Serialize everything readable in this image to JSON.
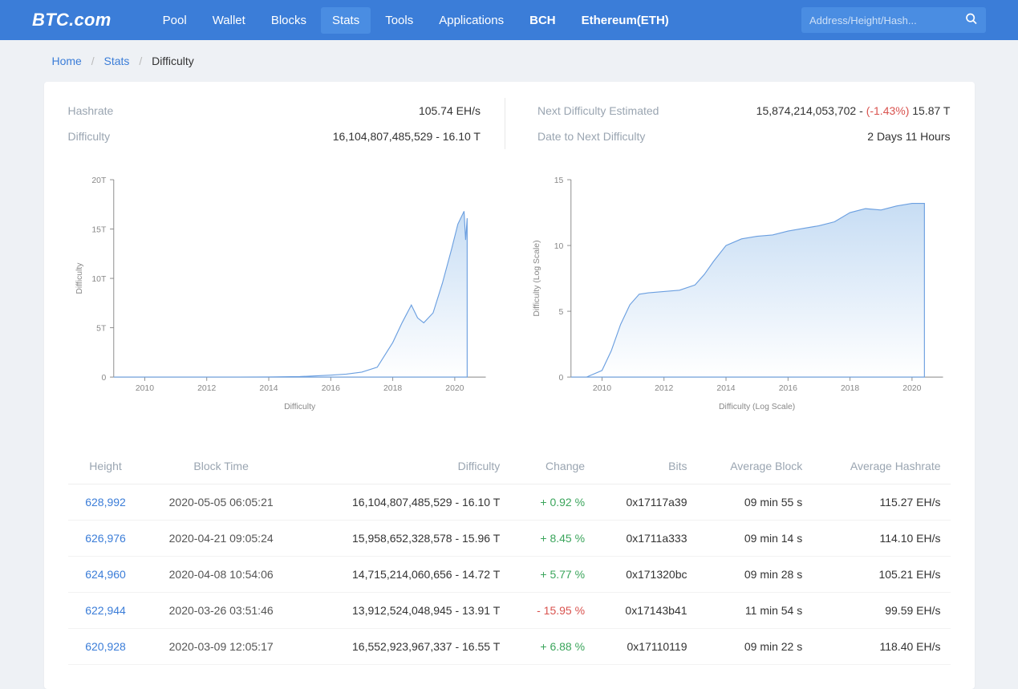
{
  "brand": "BTC.com",
  "nav": {
    "items": [
      {
        "label": "Pool",
        "active": false,
        "bold": false
      },
      {
        "label": "Wallet",
        "active": false,
        "bold": false
      },
      {
        "label": "Blocks",
        "active": false,
        "bold": false
      },
      {
        "label": "Stats",
        "active": true,
        "bold": false
      },
      {
        "label": "Tools",
        "active": false,
        "bold": false
      },
      {
        "label": "Applications",
        "active": false,
        "bold": false
      },
      {
        "label": "BCH",
        "active": false,
        "bold": true
      },
      {
        "label": "Ethereum(ETH)",
        "active": false,
        "bold": true
      }
    ],
    "search_placeholder": "Address/Height/Hash..."
  },
  "breadcrumb": {
    "home": "Home",
    "stats": "Stats",
    "current": "Difficulty"
  },
  "stats": {
    "hashrate_label": "Hashrate",
    "hashrate_value": "105.74 EH/s",
    "difficulty_label": "Difficulty",
    "difficulty_raw": "16,104,807,485,529",
    "difficulty_short": "16.10 T",
    "next_label": "Next Difficulty Estimated",
    "next_raw": "15,874,214,053,702",
    "next_change": "(-1.43%)",
    "next_short": "15.87 T",
    "date_label": "Date to Next Difficulty",
    "date_value": "2 Days 11 Hours"
  },
  "chart_left": {
    "type": "area",
    "ylabel": "Difficulty",
    "xlabel": "Difficulty",
    "stroke": "#6b9fe0",
    "fill_top": "#c7ddf4",
    "fill_bottom": "#ffffff",
    "grid_color": "#e0e0e0",
    "background": "#ffffff",
    "xlim": [
      2009,
      2021
    ],
    "xticks": [
      2010,
      2012,
      2014,
      2016,
      2018,
      2020
    ],
    "ylim": [
      0,
      20
    ],
    "yticks": [
      0,
      5,
      10,
      15,
      20
    ],
    "ytick_labels": [
      "0",
      "5T",
      "10T",
      "15T",
      "20T"
    ],
    "data": [
      [
        2009,
        0
      ],
      [
        2010,
        0
      ],
      [
        2011,
        0
      ],
      [
        2012,
        0
      ],
      [
        2013,
        0
      ],
      [
        2014,
        0.01
      ],
      [
        2015,
        0.05
      ],
      [
        2016,
        0.2
      ],
      [
        2016.5,
        0.3
      ],
      [
        2017,
        0.5
      ],
      [
        2017.5,
        1.0
      ],
      [
        2018,
        3.5
      ],
      [
        2018.3,
        5.5
      ],
      [
        2018.6,
        7.3
      ],
      [
        2018.8,
        6.0
      ],
      [
        2019,
        5.5
      ],
      [
        2019.3,
        6.5
      ],
      [
        2019.6,
        9.5
      ],
      [
        2019.9,
        13.0
      ],
      [
        2020.1,
        15.5
      ],
      [
        2020.3,
        16.8
      ],
      [
        2020.35,
        13.9
      ],
      [
        2020.4,
        16.1
      ]
    ]
  },
  "chart_right": {
    "type": "area",
    "ylabel": "Difficulty (Log Scale)",
    "xlabel": "Difficulty (Log Scale)",
    "stroke": "#6b9fe0",
    "fill_top": "#c7ddf4",
    "fill_bottom": "#ffffff",
    "grid_color": "#e0e0e0",
    "background": "#ffffff",
    "xlim": [
      2009,
      2021
    ],
    "xticks": [
      2010,
      2012,
      2014,
      2016,
      2018,
      2020
    ],
    "ylim": [
      0,
      15
    ],
    "yticks": [
      0,
      5,
      10,
      15
    ],
    "ytick_labels": [
      "0",
      "5",
      "10",
      "15"
    ],
    "data": [
      [
        2009,
        0
      ],
      [
        2009.5,
        0
      ],
      [
        2010,
        0.5
      ],
      [
        2010.3,
        2.0
      ],
      [
        2010.6,
        4.0
      ],
      [
        2010.9,
        5.5
      ],
      [
        2011.2,
        6.3
      ],
      [
        2011.5,
        6.4
      ],
      [
        2012,
        6.5
      ],
      [
        2012.5,
        6.6
      ],
      [
        2013,
        7.0
      ],
      [
        2013.3,
        7.8
      ],
      [
        2013.6,
        8.8
      ],
      [
        2014,
        10.0
      ],
      [
        2014.5,
        10.5
      ],
      [
        2015,
        10.7
      ],
      [
        2015.5,
        10.8
      ],
      [
        2016,
        11.1
      ],
      [
        2016.5,
        11.3
      ],
      [
        2017,
        11.5
      ],
      [
        2017.5,
        11.8
      ],
      [
        2018,
        12.5
      ],
      [
        2018.5,
        12.8
      ],
      [
        2019,
        12.7
      ],
      [
        2019.5,
        13.0
      ],
      [
        2020,
        13.2
      ],
      [
        2020.4,
        13.2
      ]
    ]
  },
  "table": {
    "columns": [
      "Height",
      "Block Time",
      "Difficulty",
      "Change",
      "Bits",
      "Average Block",
      "Average Hashrate"
    ],
    "rows": [
      {
        "height": "628,992",
        "time": "2020-05-05 06:05:21",
        "difficulty": "16,104,807,485,529 - 16.10 T",
        "change": "+ 0.92 %",
        "change_sign": "pos",
        "bits": "0x17117a39",
        "avg_block": "09 min 55 s",
        "avg_hash": "115.27 EH/s"
      },
      {
        "height": "626,976",
        "time": "2020-04-21 09:05:24",
        "difficulty": "15,958,652,328,578 - 15.96 T",
        "change": "+ 8.45 %",
        "change_sign": "pos",
        "bits": "0x1711a333",
        "avg_block": "09 min 14 s",
        "avg_hash": "114.10 EH/s"
      },
      {
        "height": "624,960",
        "time": "2020-04-08 10:54:06",
        "difficulty": "14,715,214,060,656 - 14.72 T",
        "change": "+ 5.77 %",
        "change_sign": "pos",
        "bits": "0x171320bc",
        "avg_block": "09 min 28 s",
        "avg_hash": "105.21 EH/s"
      },
      {
        "height": "622,944",
        "time": "2020-03-26 03:51:46",
        "difficulty": "13,912,524,048,945 - 13.91 T",
        "change": "- 15.95 %",
        "change_sign": "neg",
        "bits": "0x17143b41",
        "avg_block": "11 min 54 s",
        "avg_hash": "99.59 EH/s"
      },
      {
        "height": "620,928",
        "time": "2020-03-09 12:05:17",
        "difficulty": "16,552,923,967,337 - 16.55 T",
        "change": "+ 6.88 %",
        "change_sign": "pos",
        "bits": "0x17110119",
        "avg_block": "09 min 22 s",
        "avg_hash": "118.40 EH/s"
      }
    ]
  }
}
